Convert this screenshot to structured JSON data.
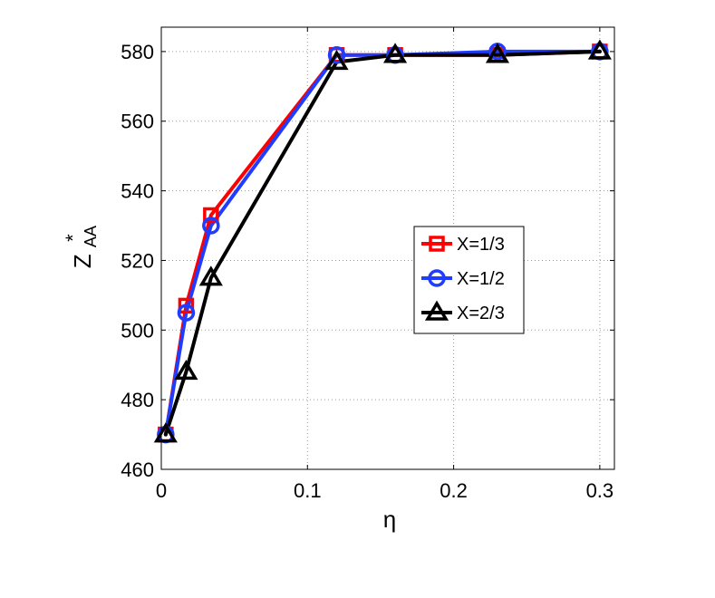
{
  "chart_data": {
    "type": "line",
    "title": "",
    "xlabel": "η",
    "ylabel": "Z*AA",
    "ylabel_main": "Z",
    "ylabel_sup": "*",
    "ylabel_sub": "AA",
    "xlim": [
      0,
      0.31
    ],
    "ylim": [
      460,
      587
    ],
    "xticks": [
      0,
      0.1,
      0.2,
      0.3
    ],
    "xtick_labels": [
      "0",
      "0.1",
      "0.2",
      "0.3"
    ],
    "yticks": [
      460,
      480,
      500,
      520,
      540,
      560,
      580
    ],
    "ytick_labels": [
      "460",
      "480",
      "500",
      "520",
      "540",
      "560",
      "580"
    ],
    "grid": true,
    "legend_position": "center-right",
    "series": [
      {
        "name": "X=1/3",
        "color": "#ff0000",
        "marker": "square",
        "x": [
          0.003,
          0.017,
          0.034,
          0.12,
          0.16,
          0.23,
          0.3
        ],
        "y": [
          470,
          507,
          533,
          579,
          579,
          579,
          580
        ]
      },
      {
        "name": "X=1/2",
        "color": "#1f3cff",
        "marker": "circle",
        "x": [
          0.003,
          0.017,
          0.034,
          0.12,
          0.16,
          0.23,
          0.3
        ],
        "y": [
          470,
          505,
          530,
          579,
          579,
          580,
          580
        ]
      },
      {
        "name": "X=2/3",
        "color": "#000000",
        "marker": "triangle",
        "x": [
          0.003,
          0.017,
          0.034,
          0.12,
          0.16,
          0.23,
          0.3
        ],
        "y": [
          470,
          488,
          515,
          577,
          579,
          579,
          580
        ]
      }
    ]
  }
}
